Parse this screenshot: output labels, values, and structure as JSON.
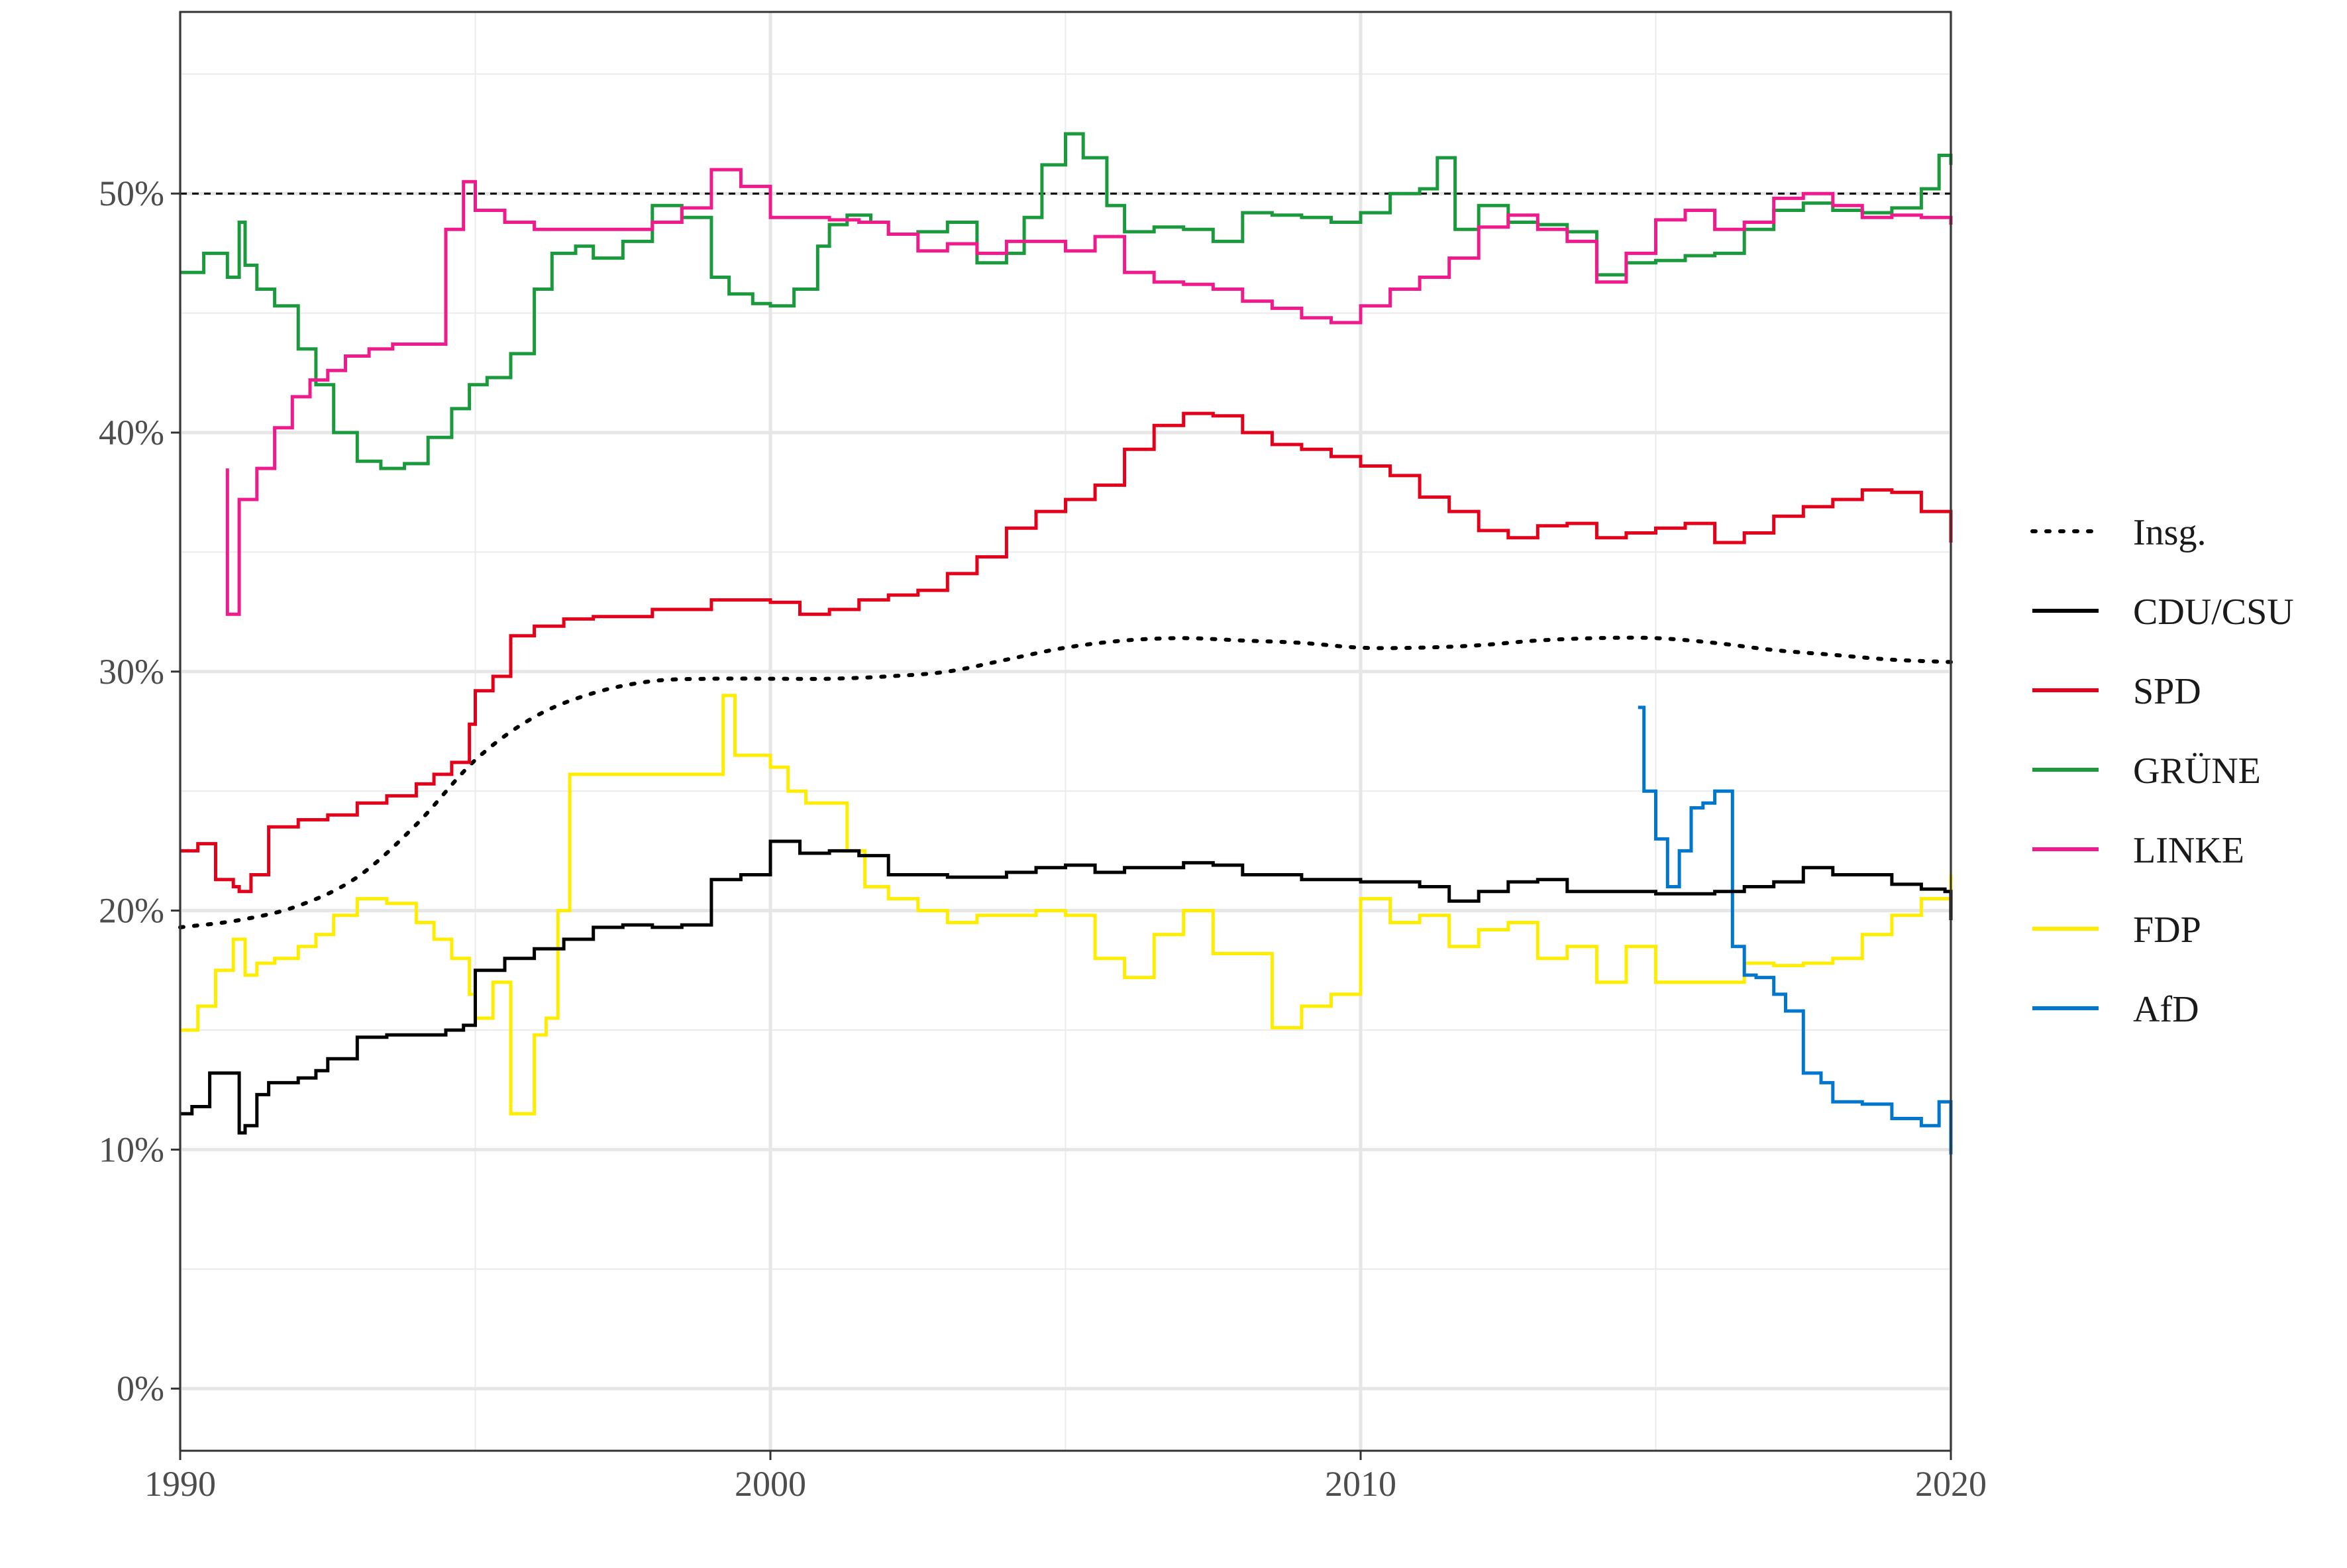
{
  "chart_data": {
    "type": "line",
    "title": "",
    "xlabel": "",
    "ylabel": "",
    "xlim": [
      1990,
      2020
    ],
    "ylim": [
      -2.6,
      57.6
    ],
    "x_ticks": [
      1990,
      2000,
      2010,
      2020
    ],
    "x_tick_labels": [
      "1990",
      "2000",
      "2010",
      "2020"
    ],
    "y_ticks": [
      0,
      10,
      20,
      30,
      40,
      50
    ],
    "y_tick_labels": [
      "0%",
      "10%",
      "20%",
      "30%",
      "40%",
      "50%"
    ],
    "grid": true,
    "legend_position": "right",
    "reference_line": {
      "y": 50,
      "style": "dashed",
      "color": "#000000"
    },
    "series": [
      {
        "name": "Insg.",
        "color": "#000000",
        "style": "dotted",
        "x": [
          1990.0,
          1991.0,
          1992.0,
          1993.0,
          1994.0,
          1995.0,
          1996.0,
          1997.0,
          1998.0,
          1999.0,
          2000.0,
          2001.0,
          2002.0,
          2003.0,
          2004.0,
          2005.0,
          2006.0,
          2007.0,
          2008.0,
          2009.0,
          2010.0,
          2011.0,
          2012.0,
          2013.0,
          2014.0,
          2015.0,
          2016.0,
          2017.0,
          2018.0,
          2019.0,
          2020.0
        ],
        "y": [
          19.3,
          19.6,
          20.2,
          21.4,
          23.6,
          26.3,
          28.1,
          29.1,
          29.6,
          29.7,
          29.7,
          29.7,
          29.8,
          30.0,
          30.5,
          31.0,
          31.3,
          31.4,
          31.3,
          31.2,
          31.0,
          31.0,
          31.1,
          31.3,
          31.4,
          31.4,
          31.2,
          30.9,
          30.7,
          30.5,
          30.4
        ]
      },
      {
        "name": "CDU/CSU",
        "color": "#000000",
        "style": "step",
        "x": [
          1990.0,
          1990.2,
          1990.5,
          1990.8,
          1991.0,
          1991.1,
          1991.3,
          1991.5,
          1992.0,
          1992.3,
          1992.5,
          1993.0,
          1993.5,
          1994.0,
          1994.5,
          1994.8,
          1995.0,
          1995.5,
          1996.0,
          1996.5,
          1997.0,
          1997.5,
          1998.0,
          1998.5,
          1999.0,
          1999.5,
          2000.0,
          2000.5,
          2001.0,
          2001.5,
          2002.0,
          2003.0,
          2004.0,
          2004.5,
          2005.0,
          2005.5,
          2006.0,
          2007.0,
          2007.5,
          2008.0,
          2009.0,
          2010.0,
          2011.0,
          2011.5,
          2012.0,
          2012.5,
          2013.0,
          2013.5,
          2014.0,
          2015.0,
          2016.0,
          2016.5,
          2017.0,
          2017.5,
          2018.0,
          2019.0,
          2019.5,
          2019.9,
          2020.0
        ],
        "y": [
          11.5,
          11.8,
          13.2,
          13.2,
          10.7,
          11.0,
          12.3,
          12.8,
          13.0,
          13.3,
          13.8,
          14.7,
          14.8,
          14.8,
          15.0,
          15.2,
          17.5,
          18.0,
          18.4,
          18.8,
          19.3,
          19.4,
          19.3,
          19.4,
          21.3,
          21.5,
          22.9,
          22.4,
          22.5,
          22.3,
          21.5,
          21.4,
          21.6,
          21.8,
          21.9,
          21.6,
          21.8,
          22.0,
          21.9,
          21.5,
          21.3,
          21.2,
          21.0,
          20.4,
          20.8,
          21.2,
          21.3,
          20.8,
          20.8,
          20.7,
          20.8,
          21.0,
          21.2,
          21.8,
          21.5,
          21.1,
          20.9,
          20.8,
          19.6
        ]
      },
      {
        "name": "SPD",
        "color": "#e3001b",
        "style": "step",
        "x": [
          1990.0,
          1990.3,
          1990.6,
          1990.9,
          1991.0,
          1991.2,
          1991.5,
          1992.0,
          1992.5,
          1993.0,
          1993.5,
          1994.0,
          1994.3,
          1994.6,
          1994.9,
          1995.0,
          1995.3,
          1995.6,
          1996.0,
          1996.5,
          1997.0,
          1998.0,
          1999.0,
          2000.0,
          2000.5,
          2001.0,
          2001.5,
          2002.0,
          2002.5,
          2003.0,
          2003.5,
          2004.0,
          2004.5,
          2005.0,
          2005.5,
          2006.0,
          2006.5,
          2007.0,
          2007.5,
          2008.0,
          2008.5,
          2009.0,
          2009.5,
          2010.0,
          2010.5,
          2011.0,
          2011.5,
          2012.0,
          2012.5,
          2013.0,
          2013.5,
          2014.0,
          2014.5,
          2015.0,
          2015.5,
          2016.0,
          2016.5,
          2017.0,
          2017.5,
          2018.0,
          2018.5,
          2019.0,
          2019.5,
          2020.0
        ],
        "y": [
          22.5,
          22.8,
          21.3,
          21.0,
          20.8,
          21.5,
          23.5,
          23.8,
          24.0,
          24.5,
          24.8,
          25.3,
          25.7,
          26.2,
          27.8,
          29.2,
          29.8,
          31.5,
          31.9,
          32.2,
          32.3,
          32.6,
          33.0,
          32.9,
          32.4,
          32.6,
          33.0,
          33.2,
          33.4,
          34.1,
          34.8,
          36.0,
          36.7,
          37.2,
          37.8,
          39.3,
          40.3,
          40.8,
          40.7,
          40.0,
          39.5,
          39.3,
          39.0,
          38.6,
          38.2,
          37.3,
          36.7,
          35.9,
          35.6,
          36.1,
          36.2,
          35.6,
          35.8,
          36.0,
          36.2,
          35.4,
          35.8,
          36.5,
          36.9,
          37.2,
          37.6,
          37.5,
          36.7,
          35.4
        ]
      },
      {
        "name": "GRÜNE",
        "color": "#1a9a3c",
        "style": "step",
        "x": [
          1990.0,
          1990.4,
          1990.8,
          1991.0,
          1991.1,
          1991.3,
          1991.6,
          1992.0,
          1992.3,
          1992.6,
          1993.0,
          1993.4,
          1993.8,
          1994.2,
          1994.6,
          1994.9,
          1995.2,
          1995.6,
          1996.0,
          1996.3,
          1996.7,
          1997.0,
          1997.5,
          1998.0,
          1998.5,
          1999.0,
          1999.3,
          1999.7,
          2000.0,
          2000.4,
          2000.8,
          2001.0,
          2001.3,
          2001.7,
          2002.0,
          2002.5,
          2003.0,
          2003.5,
          2004.0,
          2004.3,
          2004.6,
          2005.0,
          2005.3,
          2005.7,
          2006.0,
          2006.5,
          2007.0,
          2007.5,
          2008.0,
          2008.5,
          2009.0,
          2009.5,
          2010.0,
          2010.5,
          2011.0,
          2011.3,
          2011.6,
          2012.0,
          2012.5,
          2013.0,
          2013.5,
          2014.0,
          2014.5,
          2015.0,
          2015.5,
          2016.0,
          2016.5,
          2017.0,
          2017.5,
          2018.0,
          2018.5,
          2019.0,
          2019.5,
          2019.8,
          2020.0
        ],
        "y": [
          46.7,
          47.5,
          46.5,
          48.8,
          47.0,
          46.0,
          45.3,
          43.5,
          42.0,
          40.0,
          38.8,
          38.5,
          38.7,
          39.8,
          41.0,
          42.0,
          42.3,
          43.3,
          46.0,
          47.5,
          47.8,
          47.3,
          48.0,
          49.5,
          49.0,
          46.5,
          45.8,
          45.4,
          45.3,
          46.0,
          47.8,
          48.7,
          49.1,
          48.8,
          48.3,
          48.4,
          48.8,
          47.1,
          47.5,
          49.0,
          51.2,
          52.5,
          51.5,
          49.5,
          48.4,
          48.6,
          48.5,
          48.0,
          49.2,
          49.1,
          49.0,
          48.8,
          49.2,
          50.0,
          50.2,
          51.5,
          48.5,
          49.5,
          48.8,
          48.7,
          48.4,
          46.6,
          47.1,
          47.2,
          47.4,
          47.5,
          48.5,
          49.3,
          49.6,
          49.3,
          49.2,
          49.4,
          50.2,
          51.6,
          51.2
        ]
      },
      {
        "name": "LINKE",
        "color": "#ef1b8c",
        "style": "step",
        "x": [
          1990.8,
          1990.8,
          1991.0,
          1991.3,
          1991.6,
          1991.9,
          1992.2,
          1992.5,
          1992.8,
          1993.2,
          1993.6,
          1994.0,
          1994.5,
          1994.8,
          1995.0,
          1995.5,
          1996.0,
          1996.5,
          1997.0,
          1997.5,
          1998.0,
          1998.5,
          1999.0,
          1999.5,
          2000.0,
          2000.5,
          2001.0,
          2001.5,
          2002.0,
          2002.5,
          2003.0,
          2003.5,
          2004.0,
          2004.5,
          2005.0,
          2005.5,
          2006.0,
          2006.5,
          2007.0,
          2007.5,
          2008.0,
          2008.5,
          2009.0,
          2009.5,
          2010.0,
          2010.5,
          2011.0,
          2011.5,
          2012.0,
          2012.5,
          2013.0,
          2013.5,
          2014.0,
          2014.5,
          2015.0,
          2015.5,
          2016.0,
          2016.5,
          2017.0,
          2017.5,
          2018.0,
          2018.5,
          2019.0,
          2019.5,
          2020.0
        ],
        "y": [
          38.5,
          32.4,
          37.2,
          38.5,
          40.2,
          41.5,
          42.2,
          42.6,
          43.2,
          43.5,
          43.7,
          43.7,
          48.5,
          50.5,
          49.3,
          48.8,
          48.5,
          48.5,
          48.5,
          48.5,
          48.8,
          49.4,
          51.0,
          50.3,
          49.0,
          49.0,
          48.9,
          48.8,
          48.3,
          47.6,
          47.9,
          47.5,
          48.0,
          48.0,
          47.6,
          48.2,
          46.7,
          46.3,
          46.2,
          46.0,
          45.5,
          45.2,
          44.8,
          44.6,
          45.3,
          46.0,
          46.5,
          47.3,
          48.6,
          49.1,
          48.5,
          48.0,
          46.3,
          47.5,
          48.9,
          49.3,
          48.5,
          48.8,
          49.8,
          50.0,
          49.5,
          49.0,
          49.1,
          49.0,
          48.7
        ]
      },
      {
        "name": "FDP",
        "color": "#ffed00",
        "style": "step",
        "x": [
          1990.0,
          1990.3,
          1990.6,
          1990.9,
          1991.1,
          1991.3,
          1991.6,
          1992.0,
          1992.3,
          1992.6,
          1993.0,
          1993.5,
          1994.0,
          1994.3,
          1994.6,
          1994.9,
          1995.0,
          1995.3,
          1995.6,
          1996.0,
          1996.2,
          1996.4,
          1996.6,
          1997.0,
          1998.0,
          1999.0,
          1999.2,
          1999.4,
          2000.0,
          2000.3,
          2000.6,
          2001.0,
          2001.3,
          2001.6,
          2002.0,
          2002.5,
          2003.0,
          2003.5,
          2004.0,
          2004.5,
          2005.0,
          2005.5,
          2006.0,
          2006.5,
          2007.0,
          2007.5,
          2008.0,
          2008.5,
          2009.0,
          2009.5,
          2010.0,
          2010.5,
          2011.0,
          2011.5,
          2012.0,
          2012.5,
          2013.0,
          2013.5,
          2014.0,
          2014.5,
          2015.0,
          2015.5,
          2016.0,
          2016.5,
          2017.0,
          2017.5,
          2018.0,
          2018.5,
          2019.0,
          2019.5,
          2020.0
        ],
        "y": [
          15.0,
          16.0,
          17.5,
          18.8,
          17.3,
          17.8,
          18.0,
          18.5,
          19.0,
          19.8,
          20.5,
          20.3,
          19.5,
          18.8,
          18.0,
          16.5,
          15.5,
          17.0,
          11.5,
          14.8,
          15.5,
          20.0,
          25.7,
          25.7,
          25.7,
          25.7,
          29.0,
          26.5,
          26.0,
          25.0,
          24.5,
          24.5,
          22.5,
          21.0,
          20.5,
          20.0,
          19.5,
          19.8,
          19.8,
          20.0,
          19.8,
          18.0,
          17.2,
          19.0,
          20.0,
          18.2,
          18.2,
          15.1,
          16.0,
          16.5,
          20.5,
          19.5,
          19.8,
          18.5,
          19.2,
          19.5,
          18.0,
          18.5,
          17.0,
          18.5,
          17.0,
          17.0,
          17.0,
          17.8,
          17.7,
          17.8,
          18.0,
          19.0,
          19.8,
          20.5,
          21.5
        ]
      },
      {
        "name": "AfD",
        "color": "#0077cc",
        "style": "step",
        "x": [
          2014.7,
          2014.8,
          2015.0,
          2015.2,
          2015.4,
          2015.6,
          2015.8,
          2016.0,
          2016.3,
          2016.5,
          2016.7,
          2017.0,
          2017.2,
          2017.5,
          2017.8,
          2018.0,
          2018.5,
          2019.0,
          2019.5,
          2019.8,
          2020.0
        ],
        "y": [
          28.5,
          25.0,
          23.0,
          21.0,
          22.5,
          24.3,
          24.5,
          25.0,
          18.5,
          17.3,
          17.2,
          16.5,
          15.8,
          13.2,
          12.8,
          12.0,
          11.9,
          11.3,
          11.0,
          12.0,
          9.8
        ]
      }
    ]
  }
}
